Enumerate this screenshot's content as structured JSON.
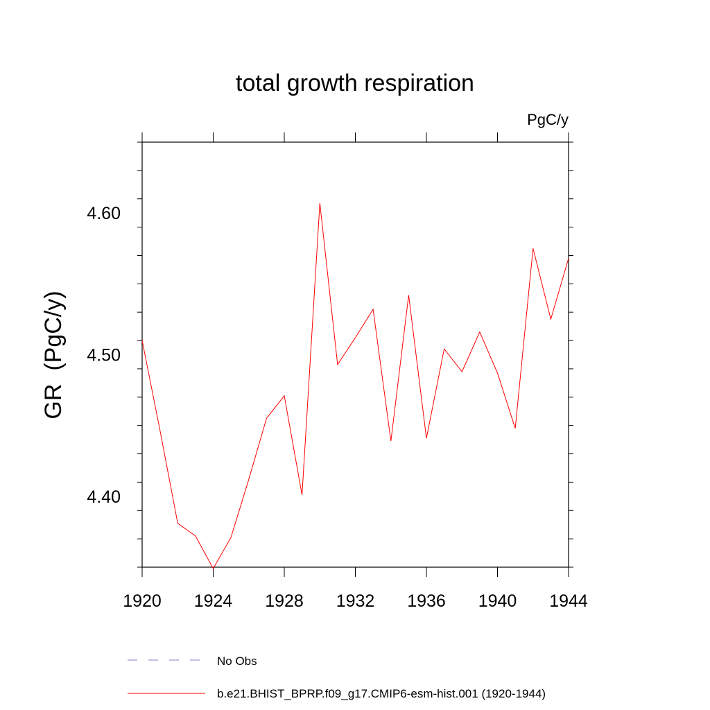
{
  "chart_data": {
    "type": "line",
    "title": "total growth respiration",
    "units_label": "PgC/y",
    "ylabel": "GR  (PgC/y)",
    "xlabel": "",
    "xlim": [
      1920,
      1944
    ],
    "ylim": [
      4.35,
      4.65
    ],
    "x_ticks": [
      1920,
      1924,
      1928,
      1932,
      1936,
      1940,
      1944
    ],
    "x_tick_labels": [
      "1920",
      "1924",
      "1928",
      "1932",
      "1936",
      "1940",
      "1944"
    ],
    "y_ticks": [
      4.4,
      4.5,
      4.6
    ],
    "y_tick_labels": [
      "4.40",
      "4.50",
      "4.60"
    ],
    "grid": false,
    "legend_position": "bottom",
    "series": [
      {
        "name": "b.e21.BHIST_BPRP.f09_g17.CMIP6-esm-hist.001 (1920-1944)",
        "color": "#ff0000",
        "style": "solid",
        "x": [
          1920,
          1921,
          1922,
          1923,
          1924,
          1925,
          1926,
          1927,
          1928,
          1929,
          1930,
          1931,
          1932,
          1933,
          1934,
          1935,
          1936,
          1937,
          1938,
          1939,
          1940,
          1941,
          1942,
          1943,
          1944
        ],
        "y": [
          4.51,
          4.447,
          4.381,
          4.372,
          4.349,
          4.371,
          4.412,
          4.455,
          4.471,
          4.401,
          4.607,
          4.493,
          4.512,
          4.532,
          4.439,
          4.542,
          4.441,
          4.504,
          4.488,
          4.516,
          4.487,
          4.448,
          4.575,
          4.525,
          4.568
        ]
      }
    ],
    "legend": [
      {
        "label": "No Obs",
        "color": "#7f7fcc",
        "style": "dashed"
      },
      {
        "label": "b.e21.BHIST_BPRP.f09_g17.CMIP6-esm-hist.001 (1920-1944)",
        "color": "#ff0000",
        "style": "solid"
      }
    ]
  }
}
